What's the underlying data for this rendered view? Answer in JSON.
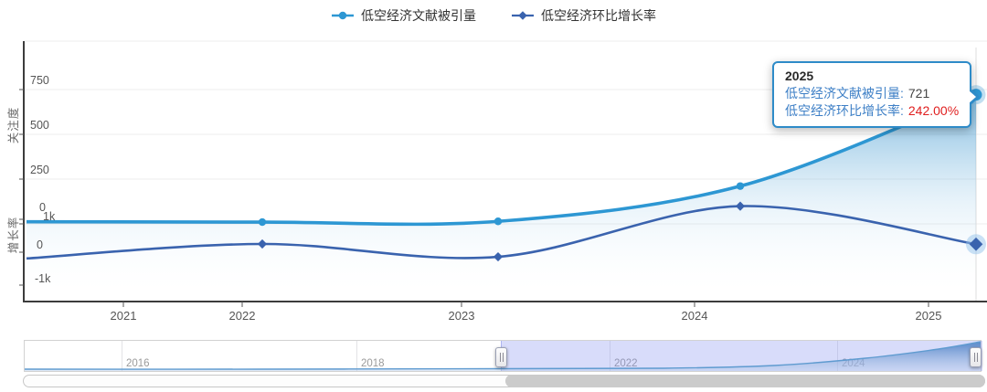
{
  "colors": {
    "series1": "#2d97d3",
    "series2": "#3a63ae",
    "tooltip_border": "#2e8bc8",
    "tooltip_label_blue": "#3d7fc6",
    "tooltip_value_red": "#e01f1f",
    "slider_selection": "#c9cef6",
    "axis_line": "#3c3c3c",
    "gridline": "#ececec"
  },
  "legend": {
    "items": [
      {
        "label": "低空经济文献被引量",
        "marker": "circle",
        "color": "#2d97d3"
      },
      {
        "label": "低空经济环比增长率",
        "marker": "diamond",
        "color": "#3a63ae"
      }
    ]
  },
  "chart_data": {
    "type": "line",
    "legend_position": "top-center",
    "grid": true,
    "x": [
      2021,
      2022,
      2023,
      2024,
      2025
    ],
    "x_tick_labels": [
      "2021",
      "2022",
      "2023",
      "2024",
      "2025"
    ],
    "y_axis_top": {
      "name": "关注度",
      "tick_labels": [
        "750",
        "500",
        "250",
        "0"
      ],
      "tick_values": [
        750,
        500,
        250,
        0
      ],
      "range": [
        0,
        850
      ]
    },
    "y_axis_bottom": {
      "name": "增长率",
      "tick_labels": [
        "1k",
        "0",
        "-1k"
      ],
      "tick_values": [
        1000,
        0,
        -1000
      ],
      "range": [
        -1500,
        1500
      ]
    },
    "series": [
      {
        "name": "低空经济文献被引量",
        "axis": "关注度",
        "marker": "circle",
        "color": "#2d97d3",
        "values": [
          12,
          10,
          14,
          211,
          721
        ]
      },
      {
        "name": "低空经济环比增长率",
        "axis": "增长率",
        "marker": "diamond",
        "color": "#3a63ae",
        "unit": "%",
        "values": [
          -190,
          250,
          -140,
          1400,
          242
        ]
      }
    ],
    "highlighted_point": {
      "x": "2025",
      "低空经济文献被引量": 721,
      "低空经济环比增长率": "242.00%"
    }
  },
  "tooltip": {
    "title": "2025",
    "rows": [
      {
        "label": "低空经济文献被引量:",
        "value": "721"
      },
      {
        "label": "低空经济环比增长率:",
        "value": "242.00%"
      }
    ]
  },
  "slider": {
    "labels": [
      "2016",
      "2018",
      "2022",
      "2024"
    ]
  }
}
